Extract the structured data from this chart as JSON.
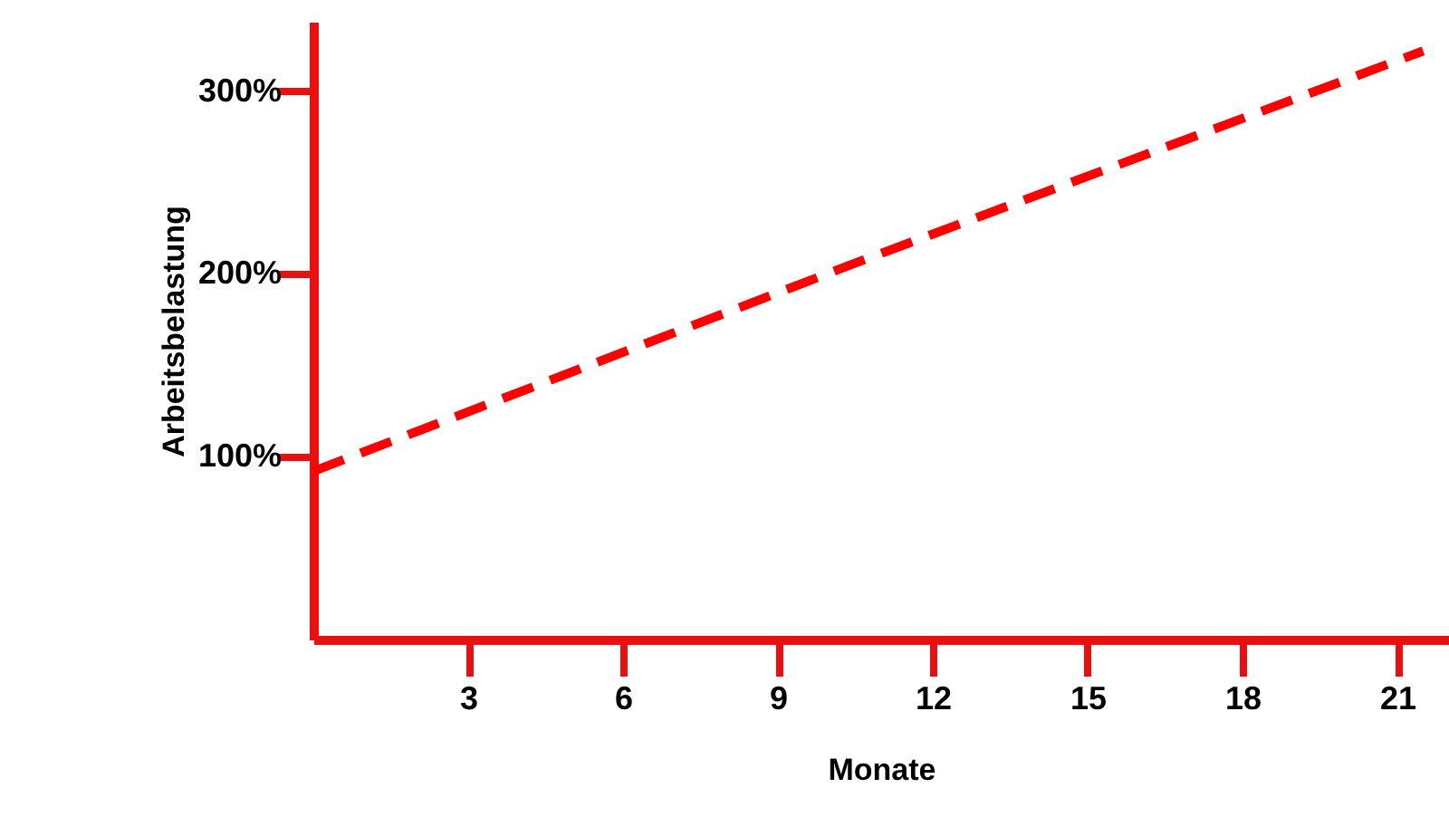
{
  "chart_data": {
    "type": "line",
    "xlabel": "Monate",
    "ylabel": "Arbeitsbelastung",
    "x": [
      0,
      10.5,
      21.5
    ],
    "series": [
      {
        "color": "#ff0000",
        "values": [
          92,
          206,
          322
        ]
      }
    ],
    "xlim": [
      0,
      22
    ],
    "xticks": [
      3,
      6,
      9,
      12,
      15,
      18,
      21
    ],
    "ylim": [
      0,
      338
    ],
    "yticks": [
      {
        "value": 100,
        "label": "100%"
      },
      {
        "value": 200,
        "label": "200%"
      },
      {
        "value": 300,
        "label": "300%"
      }
    ],
    "grid": false,
    "marker": "none",
    "line_style": "dashed"
  }
}
